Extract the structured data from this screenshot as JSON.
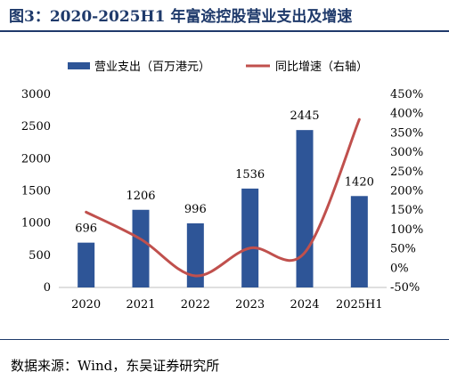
{
  "title": "图3：2020-2025H1 年富途控股营业支出及增速",
  "source": "数据来源：Wind，东吴证券研究所",
  "chart_data": {
    "type": "bar",
    "categories": [
      "2020",
      "2021",
      "2022",
      "2023",
      "2024",
      "2025H1"
    ],
    "series": [
      {
        "name": "营业支出（百万港元）",
        "type": "bar",
        "axis": "left",
        "color": "#2e5597",
        "values": [
          696,
          1206,
          996,
          1536,
          2445,
          1420
        ],
        "data_labels": [
          "696",
          "1206",
          "996",
          "1536",
          "2445",
          "1420"
        ]
      },
      {
        "name": "同比增速（右轴）",
        "type": "line",
        "axis": "right",
        "color": "#c0504d",
        "values": [
          145,
          75,
          -20,
          52,
          40,
          385
        ]
      }
    ],
    "y_left": {
      "min": 0,
      "max": 3000,
      "ticks": [
        "0",
        "500",
        "1000",
        "1500",
        "2000",
        "2500",
        "3000"
      ]
    },
    "y_right": {
      "min": -50,
      "max": 450,
      "ticks": [
        "-50%",
        "0%",
        "50%",
        "100%",
        "150%",
        "200%",
        "250%",
        "300%",
        "350%",
        "400%",
        "450%"
      ]
    },
    "legend": "top"
  }
}
